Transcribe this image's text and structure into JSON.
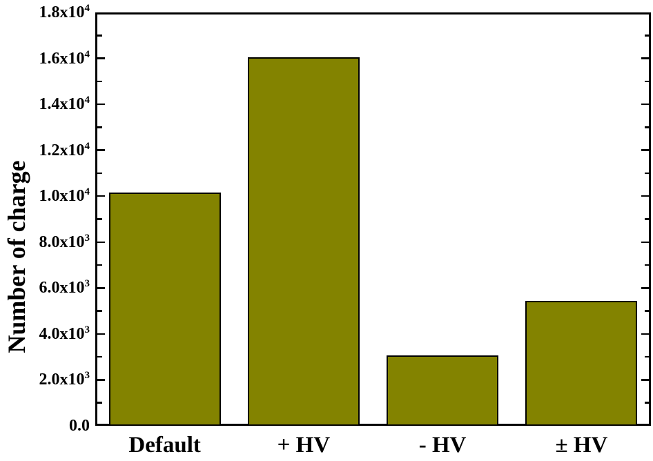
{
  "figure": {
    "background": "#ffffff"
  },
  "chart_data": {
    "type": "bar",
    "categories": [
      "Default",
      "+ HV",
      "- HV",
      "± HV"
    ],
    "values": [
      10150,
      16050,
      3070,
      5440
    ],
    "ylabel": "Number of charge",
    "ylim": [
      0,
      18000
    ],
    "y_major_ticks": [
      {
        "value": 0,
        "base": "0.0",
        "exp": ""
      },
      {
        "value": 2000,
        "base": "2.0x10",
        "exp": "3"
      },
      {
        "value": 4000,
        "base": "4.0x10",
        "exp": "3"
      },
      {
        "value": 6000,
        "base": "6.0x10",
        "exp": "3"
      },
      {
        "value": 8000,
        "base": "8.0x10",
        "exp": "3"
      },
      {
        "value": 10000,
        "base": "1.0x10",
        "exp": "4"
      },
      {
        "value": 12000,
        "base": "1.2x10",
        "exp": "4"
      },
      {
        "value": 14000,
        "base": "1.4x10",
        "exp": "4"
      },
      {
        "value": 16000,
        "base": "1.6x10",
        "exp": "4"
      },
      {
        "value": 18000,
        "base": "1.8x10",
        "exp": "4"
      }
    ],
    "y_minor_tick_values": [
      1000,
      3000,
      5000,
      7000,
      9000,
      11000,
      13000,
      15000,
      17000
    ],
    "bar_color": "#838300",
    "bar_border_color": "#000000",
    "axis_color": "#000000",
    "grid": false,
    "legend": "none"
  }
}
